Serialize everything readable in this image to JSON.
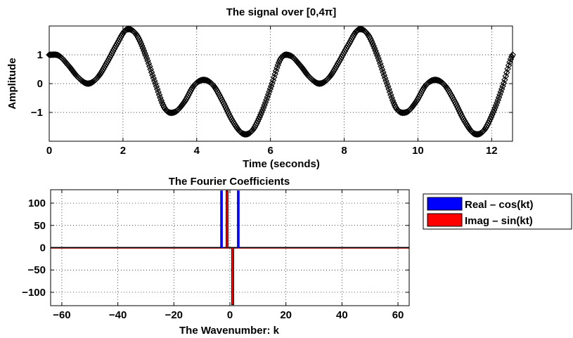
{
  "chart_data": [
    {
      "type": "line",
      "title": "The signal over [0,4π]",
      "xlabel": "Time (seconds)",
      "ylabel": "Amplitude",
      "xlim": [
        0,
        12.566
      ],
      "ylim": [
        -2,
        2
      ],
      "xticks": [
        0,
        2,
        4,
        6,
        8,
        10,
        12
      ],
      "xtick_labels": [
        "0",
        "2",
        "4",
        "6",
        "8",
        "10",
        "12"
      ],
      "yticks": [
        -1,
        0,
        1
      ],
      "ytick_labels": [
        "−1",
        "0",
        "1"
      ],
      "grid": true,
      "marker": "diamond",
      "series": [
        {
          "x": [
            0,
            0.26,
            0.52,
            0.79,
            1.05,
            1.31,
            1.57,
            1.83,
            2.09,
            2.36,
            2.62,
            2.88,
            3.14,
            3.4,
            3.67,
            3.93,
            4.19,
            4.45,
            4.71,
            4.97,
            5.24,
            5.5,
            5.76,
            6.02,
            6.28,
            6.54,
            6.81,
            7.07,
            7.33,
            7.59,
            7.85,
            8.12,
            8.38,
            8.64,
            8.9,
            9.16,
            9.42,
            9.69,
            9.95,
            10.21,
            10.47,
            10.73,
            11.0,
            11.26,
            11.52,
            11.78,
            12.04,
            12.3,
            12.57
          ],
          "values": [
            1.0,
            0.97,
            0.63,
            0.21,
            0.0,
            0.21,
            0.74,
            1.36,
            1.87,
            1.71,
            0.97,
            0.0,
            -0.87,
            -0.99,
            -0.63,
            -0.06,
            0.13,
            -0.06,
            -0.63,
            -1.29,
            -1.73,
            -1.64,
            -1.0,
            -0.09,
            0.87,
            0.97,
            0.63,
            0.21,
            0.0,
            0.21,
            0.74,
            1.36,
            1.87,
            1.71,
            0.97,
            0.0,
            -0.87,
            -0.99,
            -0.63,
            -0.06,
            0.13,
            -0.06,
            -0.63,
            -1.29,
            -1.73,
            -1.64,
            -1.0,
            -0.09,
            1.0
          ]
        }
      ]
    },
    {
      "type": "bar",
      "title": "The Fourier Coefficients",
      "xlabel": "The Wavenumber: k",
      "ylabel": "",
      "xlim": [
        -64,
        64
      ],
      "ylim": [
        -130,
        130
      ],
      "xticks": [
        -60,
        -40,
        -20,
        0,
        20,
        40,
        60
      ],
      "xtick_labels": [
        "−60",
        "−40",
        "−20",
        "0",
        "20",
        "40",
        "60"
      ],
      "yticks": [
        -100,
        -50,
        0,
        50,
        100
      ],
      "ytick_labels": [
        "−100",
        "−50",
        "0",
        "50",
        "100"
      ],
      "grid": true,
      "legend_position": "outside-right-top",
      "series": [
        {
          "name": "Real – cos(kt)",
          "color": "#0000ff",
          "k": [
            -3,
            3
          ],
          "values": [
            128,
            128
          ]
        },
        {
          "name": "Imag – sin(kt)",
          "color": "#ff0000",
          "k": [
            -1,
            1
          ],
          "values": [
            128,
            -128
          ]
        }
      ]
    }
  ]
}
